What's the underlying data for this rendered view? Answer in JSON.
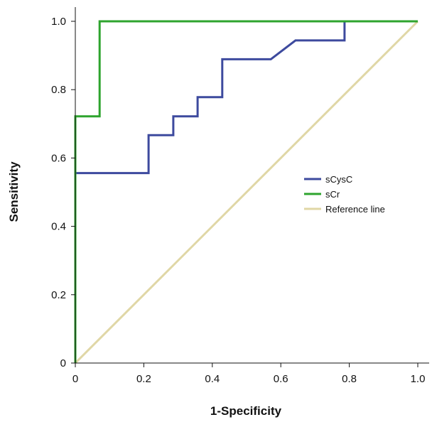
{
  "chart_data": {
    "type": "line",
    "title": "",
    "xlabel": "1-Specificity",
    "ylabel": "Sensitivity",
    "xlim": [
      0,
      1.0
    ],
    "ylim": [
      0,
      1.0
    ],
    "x_ticks": [
      {
        "value": 0,
        "label": "0"
      },
      {
        "value": 0.2,
        "label": "0.2"
      },
      {
        "value": 0.4,
        "label": "0.4"
      },
      {
        "value": 0.6,
        "label": "0.6"
      },
      {
        "value": 0.8,
        "label": "0.8"
      },
      {
        "value": 1.0,
        "label": "1.0"
      }
    ],
    "y_ticks": [
      {
        "value": 0,
        "label": "0"
      },
      {
        "value": 0.2,
        "label": "0.2"
      },
      {
        "value": 0.4,
        "label": "0.4"
      },
      {
        "value": 0.6,
        "label": "0.6"
      },
      {
        "value": 0.8,
        "label": "0.8"
      },
      {
        "value": 1.0,
        "label": "1.0"
      }
    ],
    "grid": false,
    "legend_position": "center-right",
    "series": [
      {
        "name": "sCysC",
        "color": "#3d4a9e",
        "step": true,
        "points": [
          [
            0,
            0
          ],
          [
            0,
            0.556
          ],
          [
            0.214,
            0.556
          ],
          [
            0.214,
            0.667
          ],
          [
            0.286,
            0.667
          ],
          [
            0.286,
            0.722
          ],
          [
            0.357,
            0.722
          ],
          [
            0.357,
            0.778
          ],
          [
            0.429,
            0.778
          ],
          [
            0.429,
            0.889
          ],
          [
            0.571,
            0.889
          ],
          [
            0.643,
            0.944
          ],
          [
            0.786,
            0.944
          ],
          [
            0.786,
            1.0
          ],
          [
            1.0,
            1.0
          ]
        ]
      },
      {
        "name": "sCr",
        "color": "#2ea42e",
        "step": true,
        "points": [
          [
            0,
            0
          ],
          [
            0,
            0.722
          ],
          [
            0.071,
            0.722
          ],
          [
            0.071,
            1.0
          ],
          [
            1.0,
            1.0
          ]
        ]
      },
      {
        "name": "Reference line",
        "color": "#e0d7a6",
        "step": false,
        "points": [
          [
            0,
            0
          ],
          [
            1.0,
            1.0
          ]
        ]
      }
    ]
  }
}
